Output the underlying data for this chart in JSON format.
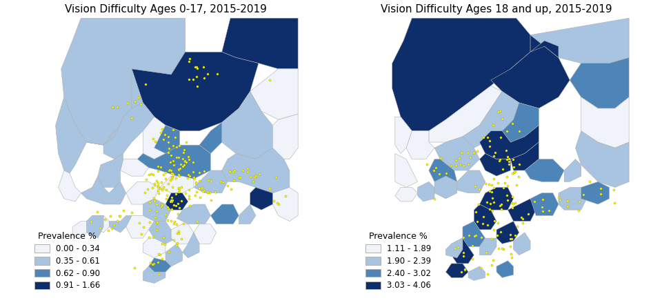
{
  "title_left": "Vision Difficulty Ages 0-17, 2015-2019",
  "title_right": "Vision Difficulty Ages 18 and up, 2015-2019",
  "legend_left_title": "Prevalence %",
  "legend_left_labels": [
    "0.00 - 0.34",
    "0.35 - 0.61",
    "0.62 - 0.90",
    "0.91 - 1.66"
  ],
  "legend_right_title": "Prevalence %",
  "legend_right_labels": [
    "1.11 - 1.89",
    "1.90 - 2.39",
    "2.40 - 3.02",
    "3.03 - 4.06"
  ],
  "colors_4": [
    "#f0f4fa",
    "#a8c4e0",
    "#4e85b8",
    "#0d2d6b"
  ],
  "bg_color": "#ffffff",
  "border_color": "#b0b0b0",
  "dot_color": "#ffff00",
  "dot_edge_color": "#999900",
  "title_fontsize": 11,
  "legend_fontsize": 8.5,
  "map_bg": "#f8f8f8"
}
